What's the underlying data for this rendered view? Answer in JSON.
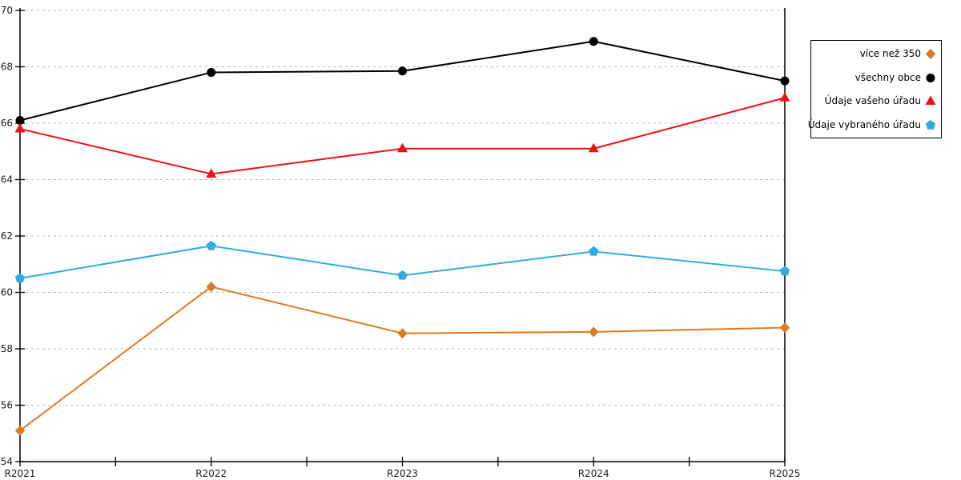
{
  "chart_data": {
    "type": "line",
    "title": "",
    "xlabel": "",
    "ylabel": "",
    "categories": [
      "R2021",
      "R2022",
      "R2023",
      "R2024",
      "R2025"
    ],
    "series": [
      {
        "name": "více než 350",
        "marker": "diamond",
        "color": "#dd7a21",
        "values": [
          55.1,
          60.2,
          58.55,
          58.6,
          58.75
        ]
      },
      {
        "name": "všechny obce",
        "marker": "circle",
        "color": "#000000",
        "values": [
          66.1,
          67.8,
          67.85,
          68.9,
          67.5
        ]
      },
      {
        "name": "Údaje vašeho úřadu",
        "marker": "triangle-up",
        "color": "#ee1111",
        "values": [
          65.8,
          64.2,
          65.1,
          65.1,
          66.9
        ]
      },
      {
        "name": "Údaje vybraného úřadu",
        "marker": "pentagon",
        "color": "#2fade2",
        "values": [
          60.5,
          61.65,
          60.6,
          61.45,
          60.75
        ]
      }
    ],
    "ylim": [
      54,
      70
    ],
    "ytick_step": 2,
    "ytick_labels": [
      "54",
      "56",
      "58",
      "60",
      "62",
      "64",
      "66",
      "68",
      "70"
    ],
    "grid": "horizontal-dashed",
    "grid_color": "#bbbbbb",
    "axis_color": "#000000",
    "label_color": "#1a1a1a",
    "background": "#ffffff",
    "legend_position": "outside-right",
    "x_minor_ticks": "midpoints"
  }
}
